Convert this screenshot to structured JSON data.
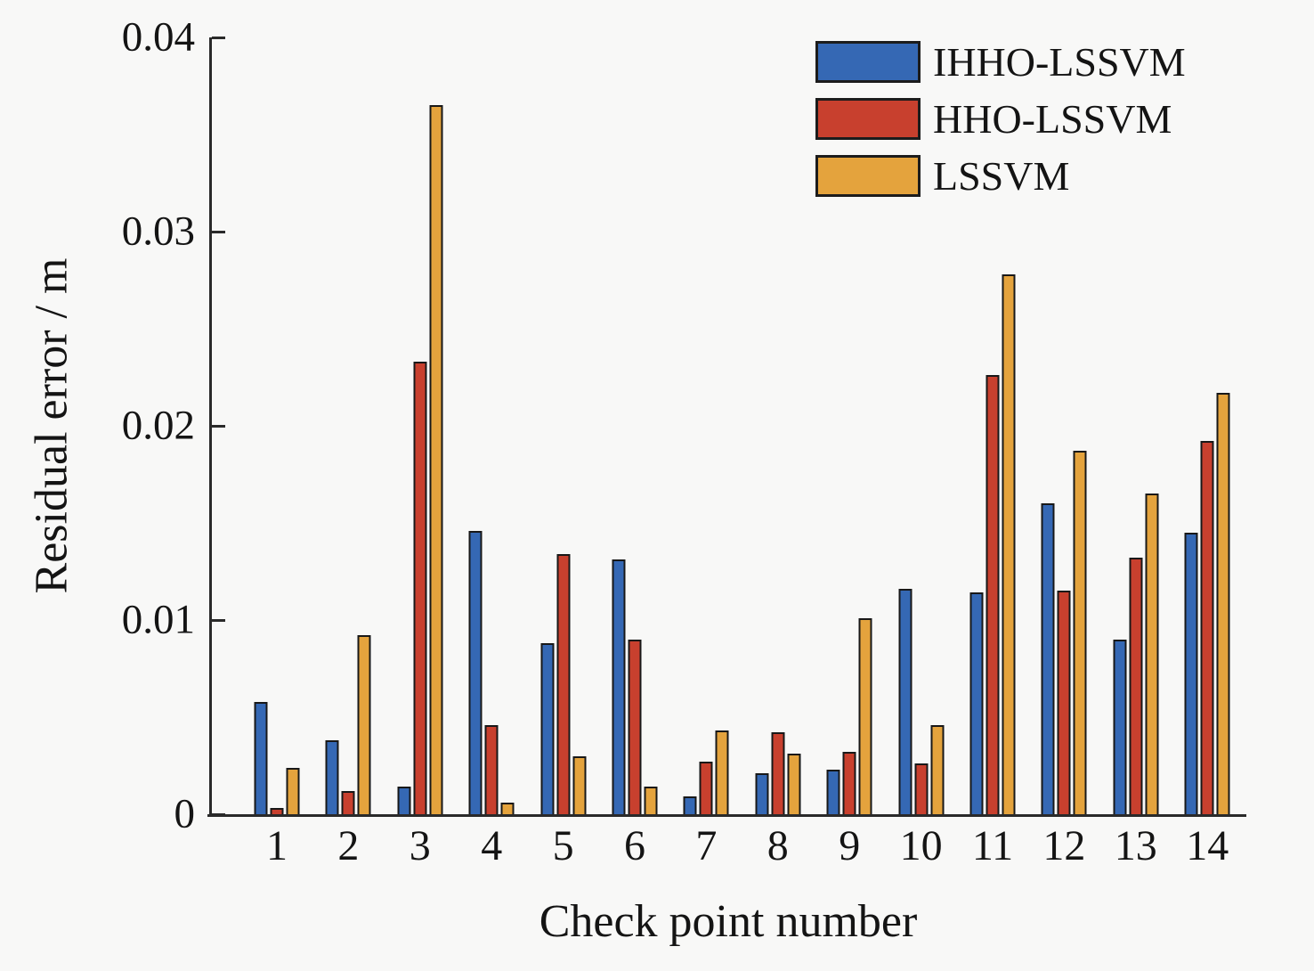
{
  "chart_data": {
    "type": "bar",
    "title": "",
    "xlabel": "Check point number",
    "ylabel": "Residual error / m",
    "x_categories": [
      "1",
      "2",
      "3",
      "4",
      "5",
      "6",
      "7",
      "8",
      "9",
      "10",
      "11",
      "12",
      "13",
      "14"
    ],
    "ylim": [
      0,
      0.04
    ],
    "yticks": [
      0,
      0.01,
      0.02,
      0.03,
      0.04
    ],
    "ytick_labels": [
      "0",
      "0.01",
      "0.02",
      "0.03",
      "0.04"
    ],
    "grid": false,
    "legend_position": "top-right",
    "bar_edge_color": "#181818",
    "series": [
      {
        "name": "IHHO-LSSVM",
        "color": "#3568b4",
        "values": [
          0.0058,
          0.0038,
          0.0014,
          0.0146,
          0.0088,
          0.0131,
          0.0009,
          0.0021,
          0.0023,
          0.0116,
          0.0114,
          0.016,
          0.009,
          0.0145
        ]
      },
      {
        "name": "HHO-LSSVM",
        "color": "#c8402e",
        "values": [
          0.0003,
          0.0012,
          0.0233,
          0.0046,
          0.0134,
          0.009,
          0.0027,
          0.0042,
          0.0032,
          0.0026,
          0.0226,
          0.0115,
          0.0132,
          0.0192
        ]
      },
      {
        "name": "LSSVM",
        "color": "#e4a33d",
        "values": [
          0.0024,
          0.0092,
          0.0365,
          0.0006,
          0.003,
          0.0014,
          0.0043,
          0.0031,
          0.0101,
          0.0046,
          0.0278,
          0.0187,
          0.0165,
          0.0217
        ]
      }
    ]
  }
}
